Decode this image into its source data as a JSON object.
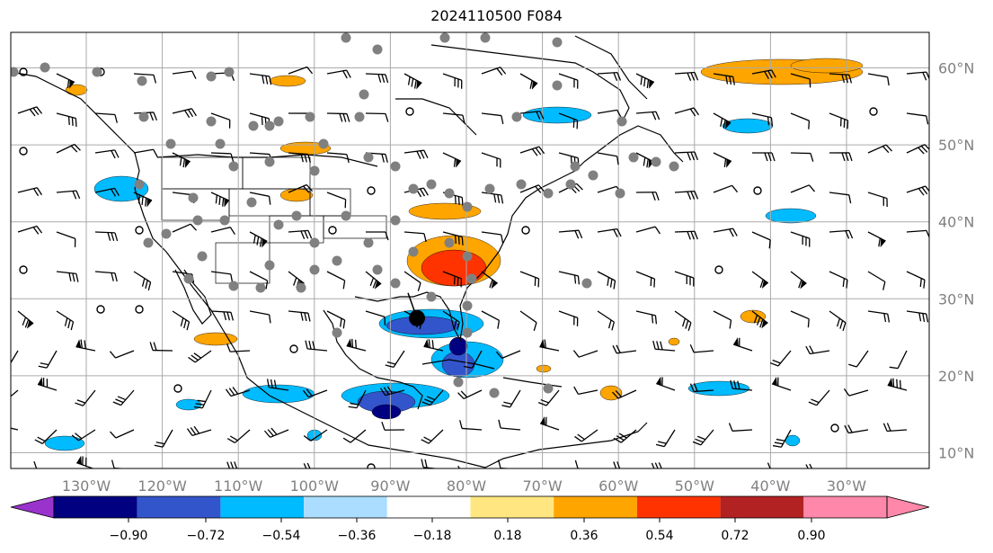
{
  "title": "2024110500 F084",
  "lon_labels": [
    "130°W",
    "120°W",
    "110°W",
    "100°W",
    "90°W",
    "80°W",
    "70°W",
    "60°W",
    "50°W",
    "40°W",
    "30°W"
  ],
  "lat_labels": [
    "60°N",
    "50°N",
    "40°N",
    "30°N",
    "20°N",
    "10°N"
  ],
  "colorbar": {
    "tick_labels": [
      "−0.90",
      "−0.72",
      "−0.54",
      "−0.36",
      "−0.18",
      "0.18",
      "0.36",
      "0.54",
      "0.72",
      "0.90"
    ],
    "colors": [
      "#9933cc",
      "#000080",
      "#3355cc",
      "#00bbff",
      "#aaddff",
      "#ffffff",
      "#ffe680",
      "#ffa500",
      "#ff3300",
      "#b22222",
      "#ff88aa"
    ]
  },
  "colors": {
    "grid": "#aaaaaa",
    "coast": "#000000",
    "station": "#808080",
    "storm_center": "#000000",
    "tick_label": "#808080"
  },
  "storm_marker": {
    "lon": -86.5,
    "lat": 27.5
  }
}
